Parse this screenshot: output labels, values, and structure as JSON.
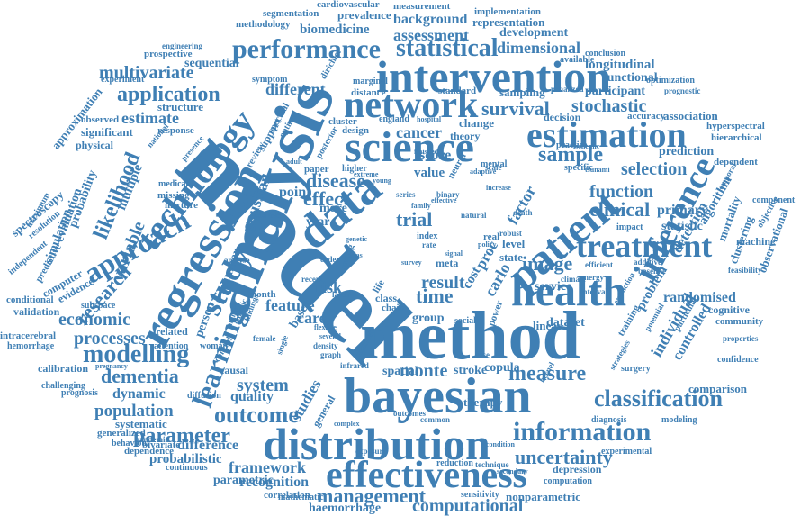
{
  "cloud": {
    "accent_color": "#3f7fb4",
    "background": "#ffffff",
    "words": [
      "model",
      "analysis",
      "method",
      "bayesian",
      "distribution",
      "effectiveness",
      "intervention",
      "science",
      "network",
      "health",
      "data",
      "regression",
      "patient",
      "technology",
      "treatment",
      "estimation",
      "study",
      "approach",
      "inference",
      "performance",
      "learning",
      "information",
      "classification",
      "application",
      "modelling",
      "uncertainty",
      "outcome",
      "parameter",
      "statistical",
      "management",
      "computational",
      "framework",
      "population",
      "dementia",
      "economic",
      "processes",
      "likelihood",
      "research",
      "estimate",
      "multivariate",
      "clinical",
      "sample",
      "selection",
      "function",
      "measure",
      "survival",
      "stochastic",
      "dimensional",
      "assessment",
      "background",
      "biomedicine",
      "segmentation",
      "prevalence",
      "measurement",
      "implementation",
      "representation",
      "development",
      "cardiovascular",
      "methodology",
      "participant",
      "longitudinal",
      "functional",
      "association",
      "prediction",
      "detection",
      "algorithm",
      "primary",
      "statistic",
      "individual",
      "controlled",
      "randomised",
      "problem",
      "community",
      "comparison",
      "cognitive",
      "observational",
      "clustering",
      "mortality",
      "dependent",
      "hierarchical",
      "hyperspectral",
      "accuracy",
      "optimization",
      "conclusion",
      "available",
      "sampling",
      "penalized",
      "prognostic",
      "different",
      "structure",
      "sequential",
      "significant",
      "prospective",
      "approximation",
      "engineering",
      "experiment",
      "physical",
      "probability",
      "simulation",
      "evaluation",
      "spectroscopy",
      "resolution",
      "maximum",
      "independent",
      "predictive",
      "computer",
      "evidence",
      "variable",
      "multiple",
      "gaussian",
      "number",
      "person",
      "system",
      "quality",
      "studies",
      "general",
      "spatial",
      "monte",
      "carlo",
      "proc",
      "cost",
      "result",
      "time",
      "trial",
      "effect",
      "disease",
      "cancer",
      "score",
      "value",
      "factor",
      "feature",
      "care",
      "risk",
      "based",
      "point",
      "year",
      "more",
      "image",
      "group",
      "service",
      "dataset",
      "linear",
      "level",
      "state",
      "meta",
      "real",
      "copula",
      "stroke",
      "dynamic",
      "systematic",
      "difference",
      "probabilistic",
      "parametric",
      "recognition",
      "correlation",
      "haemorrhage",
      "mathematic",
      "continuous",
      "bivariate",
      "pandemic",
      "generalized",
      "behaviour",
      "dependence",
      "intracerebral",
      "hemorrhage",
      "calibration",
      "challenging",
      "prognosis",
      "pregnancy",
      "validation",
      "conditional",
      "subspace",
      "related",
      "attention",
      "causal",
      "woman",
      "diffusion",
      "control",
      "month",
      "positive",
      "reduction",
      "technique",
      "nonparametric",
      "sensitivity",
      "computation",
      "depression",
      "experimental",
      "diagnosis",
      "modeling",
      "surgery",
      "training",
      "therapy",
      "confidence",
      "properties",
      "feasibility",
      "machine",
      "component",
      "baseline",
      "additive",
      "efficient",
      "energy",
      "climate",
      "interval",
      "impact",
      "specific",
      "practice",
      "ischemic",
      "tsunami",
      "mental",
      "decision",
      "change",
      "theory",
      "cluster",
      "england",
      "hospital",
      "design",
      "paper",
      "higher",
      "extreme",
      "finished",
      "review",
      "support",
      "spectral",
      "optimal",
      "posterior",
      "dirichlet",
      "marginal",
      "symptom",
      "distance",
      "standard",
      "national",
      "presence",
      "response",
      "observed",
      "medical",
      "missing",
      "mixture",
      "chronic",
      "indirect",
      "findings",
      "analyse",
      "recent",
      "setting",
      "order",
      "latent",
      "class",
      "chain",
      "social",
      "power",
      "life",
      "bias",
      "series",
      "binary",
      "neural",
      "scale",
      "adaptive",
      "natural",
      "death",
      "robust",
      "policy",
      "index",
      "rate",
      "case",
      "market",
      "graph",
      "density",
      "several",
      "flexible",
      "female",
      "single",
      "infrared",
      "kernel",
      "strategies",
      "potential",
      "particular",
      "objective",
      "temporal",
      "extraction",
      "condition",
      "exposure",
      "outcomes",
      "common",
      "complex",
      "secondary",
      "effective",
      "family",
      "adult",
      "young",
      "increase",
      "survey",
      "signal",
      "genetic",
      "heart",
      "blood",
      "weight"
    ]
  }
}
